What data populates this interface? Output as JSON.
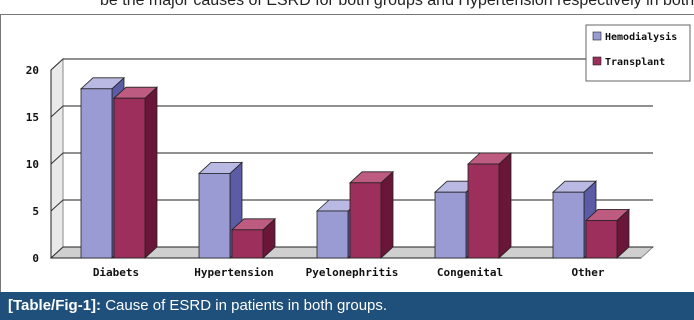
{
  "top_text": "be the major causes of ESRD for both groups and Hypertension respectively in both groups.",
  "chart_data": {
    "type": "bar",
    "title": "",
    "xlabel": "",
    "ylabel": "",
    "categories": [
      "Diabets",
      "Hypertension",
      "Pyelonephritis",
      "Congenital",
      "Other"
    ],
    "series": [
      {
        "name": "Hemodialysis",
        "values": [
          18,
          9,
          5,
          7,
          7
        ]
      },
      {
        "name": "Transplant",
        "values": [
          17,
          3,
          8,
          10,
          4
        ]
      }
    ],
    "ylim": [
      0,
      20
    ],
    "yticks": [
      0,
      5,
      10,
      15,
      20
    ],
    "grid": true,
    "legend": "top-right",
    "colors": {
      "Hemodialysis": {
        "front": "#9b9bd4",
        "side": "#5c5ca6",
        "top": "#b9b9e4"
      },
      "Transplant": {
        "front": "#9c2f5c",
        "side": "#6a1638",
        "top": "#bd5b80"
      }
    }
  },
  "caption": {
    "label": "[Table/Fig-1]:",
    "text": "Cause of ESRD in patients in both groups."
  }
}
